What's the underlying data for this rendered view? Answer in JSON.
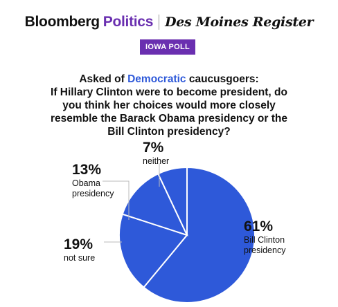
{
  "header": {
    "brand_left": "Bloomberg",
    "brand_left_accent": "Politics",
    "brand_right": "Des Moines Register",
    "badge": "IOWA POLL"
  },
  "question": {
    "line1_prefix": "Asked of ",
    "line1_highlight": "Democratic",
    "line1_suffix": " caucusgoers:",
    "line2": "If Hillary Clinton were to become president, do you think her choices would more closely resemble the Barack Obama presidency or the Bill Clinton presidency?"
  },
  "colors": {
    "slice_fill": "#2e59d9",
    "slice_stroke": "#ffffff",
    "leader": "#bbbbbb",
    "accent": "#6a2fb0"
  },
  "chart_data": {
    "type": "pie",
    "title": "",
    "slices": [
      {
        "label": "Bill Clinton presidency",
        "label_lines": [
          "Bill Clinton",
          "presidency"
        ],
        "value": 61,
        "display": "61%"
      },
      {
        "label": "not sure",
        "label_lines": [
          "not sure"
        ],
        "value": 19,
        "display": "19%"
      },
      {
        "label": "Obama presidency",
        "label_lines": [
          "Obama",
          "presidency"
        ],
        "value": 13,
        "display": "13%"
      },
      {
        "label": "neither",
        "label_lines": [
          "neither"
        ],
        "value": 7,
        "display": "7%"
      }
    ]
  }
}
